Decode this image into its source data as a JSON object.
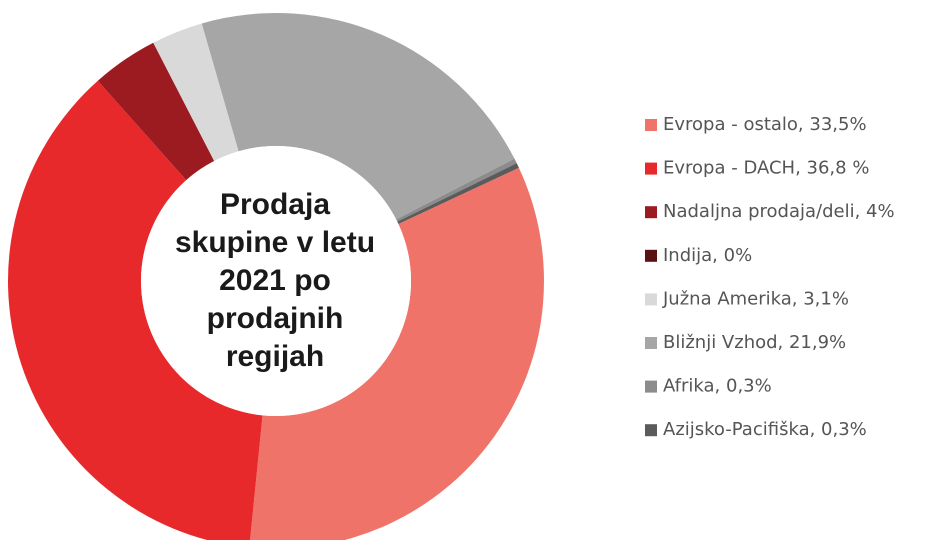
{
  "chart_data": {
    "type": "donut",
    "title": "Prodaja skupine v letu 2021 po prodajnih regijah",
    "categories": [
      "Evropa - ostalo, 33,5%",
      "Evropa - DACH, 36,8 %",
      "Nadaljna prodaja/deli, 4%",
      "Indija, 0%",
      "Južna Amerika, 3,1%",
      "Bližnji Vzhod, 21,9%",
      "Afrika, 0,3%",
      "Azijsko-Pacifiška, 0,3%"
    ],
    "values": [
      33.5,
      36.8,
      4,
      0,
      3.1,
      21.9,
      0.3,
      0.3
    ],
    "colors": [
      "#f0736a",
      "#e8292c",
      "#9b1b21",
      "#5a1116",
      "#d9d9d9",
      "#a6a6a6",
      "#8c8c8c",
      "#5b5b5b"
    ],
    "legend": "right"
  }
}
